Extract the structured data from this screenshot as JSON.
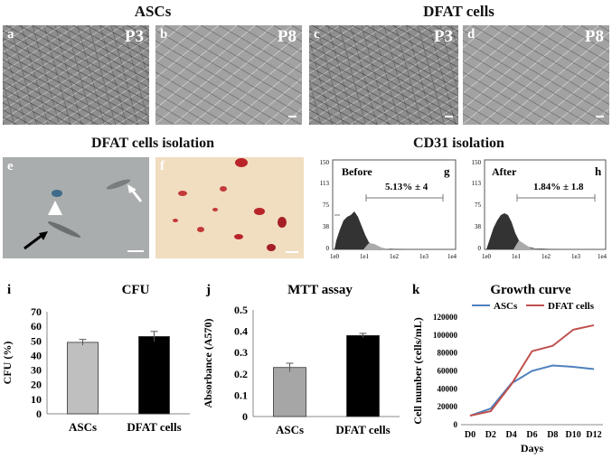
{
  "headers": {
    "ascs": "ASCs",
    "dfat": "DFAT cells",
    "dfat_isolation": "DFAT cells isolation",
    "cd31_isolation": "CD31 isolation"
  },
  "top_panels": [
    {
      "letter": "a",
      "passage": "P3"
    },
    {
      "letter": "b",
      "passage": "P8"
    },
    {
      "letter": "c",
      "passage": "P3"
    },
    {
      "letter": "d",
      "passage": "P8"
    }
  ],
  "mid_panels": {
    "e": "e",
    "f": "f",
    "g": {
      "letter": "g",
      "label": "Before",
      "percent": "5.13% ± 4"
    },
    "h": {
      "letter": "h",
      "label": "After",
      "percent": "1.84% ± 1.8"
    },
    "flow_y_ticks": [
      "150",
      "113",
      "75",
      "38",
      "0"
    ],
    "flow_x_ticks": [
      "1e0",
      "1e1",
      "1e2",
      "1e3",
      "1e4"
    ]
  },
  "chart_data": [
    {
      "panel": "i",
      "type": "bar",
      "title": "CFU",
      "ylabel": "CFU (%)",
      "xlabel": "",
      "categories": [
        "ASCs",
        "DFAT cells"
      ],
      "values": [
        49,
        53
      ],
      "errors": [
        2,
        3.5
      ],
      "colors": [
        "#bfbfbf",
        "#000000"
      ],
      "ylim": [
        0,
        70
      ],
      "yticks": [
        0,
        10,
        20,
        30,
        40,
        50,
        60,
        70
      ]
    },
    {
      "panel": "j",
      "type": "bar",
      "title": "MTT assay",
      "ylabel": "Absorbance (A570)",
      "xlabel": "",
      "categories": [
        "ASCs",
        "DFAT cells"
      ],
      "values": [
        0.23,
        0.38
      ],
      "errors": [
        0.02,
        0.01
      ],
      "colors": [
        "#a6a6a6",
        "#000000"
      ],
      "ylim": [
        0,
        0.5
      ],
      "yticks": [
        "0",
        "0.1",
        "0.2",
        "0.3",
        "0.4",
        "0.5"
      ]
    },
    {
      "panel": "k",
      "type": "line",
      "title": "Growth curve",
      "ylabel": "Cell number (cells/mL)",
      "xlabel": "Days",
      "x": [
        "D0",
        "D2",
        "D4",
        "D6",
        "D8",
        "D10",
        "D12"
      ],
      "series": [
        {
          "name": "ASCs",
          "color": "#4f81bd",
          "values": [
            10000,
            18000,
            46000,
            60000,
            66000,
            64500,
            62000
          ]
        },
        {
          "name": "DFAT cells",
          "color": "#c0504d",
          "values": [
            10000,
            15000,
            45000,
            82000,
            88000,
            106000,
            111000
          ]
        }
      ],
      "ylim": [
        0,
        120000
      ],
      "yticks": [
        0,
        20000,
        40000,
        60000,
        80000,
        100000,
        120000
      ],
      "legend": "top"
    }
  ]
}
